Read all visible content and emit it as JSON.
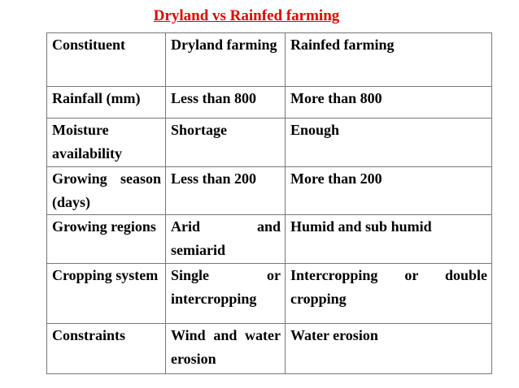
{
  "header": {
    "title": "Dryland vs Rainfed farming"
  },
  "table": {
    "header": [
      "Constituent",
      "Dryland farming",
      "Rainfed farming"
    ],
    "rows": [
      [
        "Rainfall (mm)",
        "Less than 800",
        "More than 800"
      ],
      [
        "Moisture availability",
        "Shortage",
        "Enough"
      ],
      [
        "Growing season (days)",
        "Less than 200",
        "More than 200"
      ],
      [
        "Growing regions",
        "Arid and semiarid",
        "Humid and sub humid"
      ],
      [
        "Cropping system",
        "Single or intercropping",
        "Intercropping or double cropping"
      ],
      [
        "Constraints",
        "Wind and water erosion",
        "Water erosion"
      ]
    ]
  }
}
